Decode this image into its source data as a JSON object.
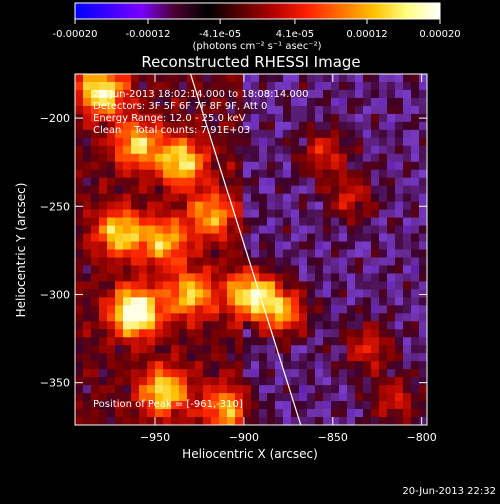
{
  "colorbar": {
    "tick_labels": [
      "-0.00020",
      "-0.00012",
      "-4.1e-05",
      "4.1e-05",
      "0.00012",
      "0.00020"
    ],
    "tick_values": [
      -0.0002,
      -0.00012,
      -4.1e-05,
      4.1e-05,
      0.00012,
      0.0002
    ],
    "range": [
      -0.0002,
      0.0002
    ],
    "units_text": "(photons cm⁻² s⁻¹ asec⁻²)",
    "colors": [
      "#0000ff",
      "#3a00ff",
      "#7a00ff",
      "#4a0030",
      "#000000",
      "#5a0000",
      "#b40000",
      "#ff2000",
      "#ff7000",
      "#ffc000",
      "#ffff80",
      "#ffffff"
    ]
  },
  "chart_data": {
    "type": "heatmap",
    "title": "Reconstructed RHESSI Image",
    "xlabel": "Heliocentric X (arcsec)",
    "ylabel": "Heliocentric Y (arcsec)",
    "xlim": [
      -995,
      -797
    ],
    "ylim": [
      -374,
      -175
    ],
    "x_ticks": [
      -950,
      -900,
      -850,
      -800
    ],
    "y_ticks": [
      -200,
      -250,
      -300,
      -350
    ],
    "x_tick_labels": [
      "−950",
      "−900",
      "−850",
      "−800"
    ],
    "y_tick_labels": [
      "−200",
      "−250",
      "−300",
      "−350"
    ],
    "limb_line": {
      "x": [
        -930,
        -868
      ],
      "y": [
        -175,
        -374
      ]
    },
    "bright_sources": [
      {
        "x": -980,
        "y": -185,
        "v": 1.0
      },
      {
        "x": -960,
        "y": -215,
        "v": 0.8
      },
      {
        "x": -935,
        "y": -225,
        "v": 0.9
      },
      {
        "x": -970,
        "y": -265,
        "v": 0.85
      },
      {
        "x": -945,
        "y": -270,
        "v": 0.75
      },
      {
        "x": -918,
        "y": -255,
        "v": 0.7
      },
      {
        "x": -961,
        "y": -310,
        "v": 1.3
      },
      {
        "x": -930,
        "y": -300,
        "v": 0.8
      },
      {
        "x": -895,
        "y": -300,
        "v": 1.1
      },
      {
        "x": -878,
        "y": -310,
        "v": 0.8
      },
      {
        "x": -945,
        "y": -355,
        "v": 0.9
      },
      {
        "x": -910,
        "y": -365,
        "v": 0.7
      },
      {
        "x": -855,
        "y": -220,
        "v": 0.5
      },
      {
        "x": -840,
        "y": -245,
        "v": 0.45
      },
      {
        "x": -830,
        "y": -330,
        "v": 0.5
      },
      {
        "x": -815,
        "y": -360,
        "v": 0.45
      }
    ],
    "annotations": [
      "20-Jun-2013 18:02:14.000 to 18:08:14.000",
      "Detectors: 3F 5F 6F 7F 8F 9F, Att 0",
      "Energy Range: 12.0 - 25.0 keV",
      "Clean    Total counts: 7.91E+03"
    ],
    "peak_label": "Position of Peak = [-961,-310]",
    "peak_position": [
      -961,
      -310
    ]
  },
  "timestamp": "20-Jun-2013 22:32"
}
